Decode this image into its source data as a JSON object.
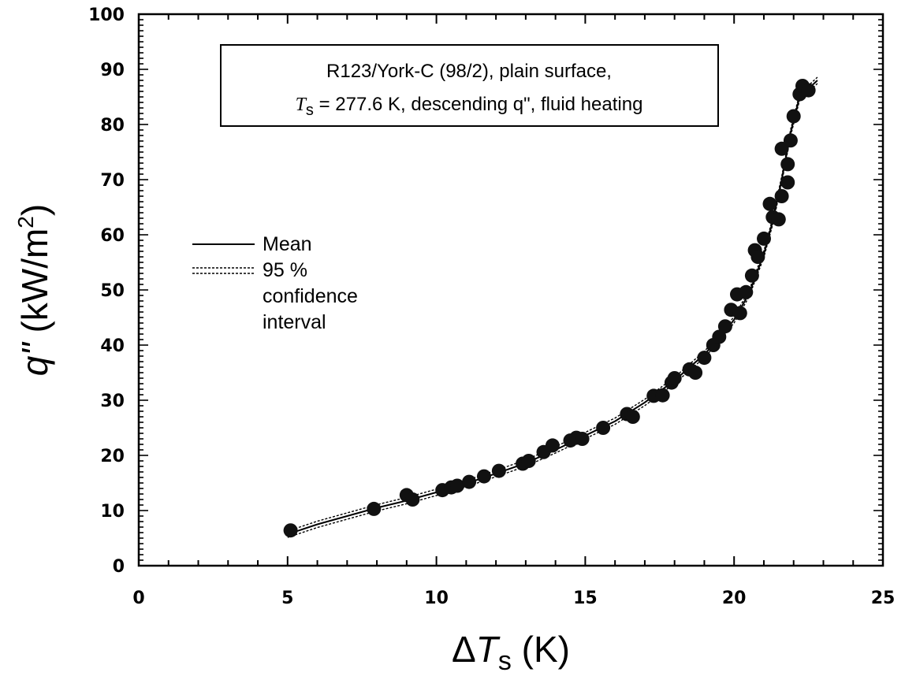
{
  "chart_data": {
    "type": "scatter",
    "title_line1": "R123/York-C (98/2), plain surface,",
    "title_line2_symbol": "T",
    "title_line2_subscript": "s",
    "title_line2_rest": " = 277.6 K, descending q\", fluid heating",
    "xlabel_prefix": "Δ",
    "xlabel_symbol": "T",
    "xlabel_subscript": "s",
    "xlabel_unit": " (K)",
    "ylabel_symbol": "q\"",
    "ylabel_unit": " (kW/m",
    "ylabel_unit_sup": "2",
    "ylabel_unit_end": ")",
    "xlim": [
      0,
      25
    ],
    "ylim": [
      0,
      100
    ],
    "xticks": [
      "0",
      "5",
      "10",
      "15",
      "20",
      "25"
    ],
    "yticks": [
      "0",
      "10",
      "20",
      "30",
      "40",
      "50",
      "60",
      "70",
      "80",
      "90",
      "100"
    ],
    "legend": {
      "mean_label": "Mean",
      "ci_label_1": "95 %",
      "ci_label_2": "confidence",
      "ci_label_3": "interval"
    },
    "series": [
      {
        "points": [
          [
            5.1,
            6.4
          ],
          [
            7.9,
            10.3
          ],
          [
            9.0,
            12.8
          ],
          [
            9.2,
            12.0
          ],
          [
            10.2,
            13.7
          ],
          [
            10.5,
            14.2
          ],
          [
            10.7,
            14.5
          ],
          [
            11.1,
            15.2
          ],
          [
            11.6,
            16.2
          ],
          [
            12.1,
            17.2
          ],
          [
            12.9,
            18.5
          ],
          [
            13.1,
            19.0
          ],
          [
            13.6,
            20.6
          ],
          [
            13.9,
            21.8
          ],
          [
            14.5,
            22.7
          ],
          [
            14.7,
            23.2
          ],
          [
            14.9,
            23.0
          ],
          [
            15.6,
            25.0
          ],
          [
            16.4,
            27.5
          ],
          [
            16.6,
            27.0
          ],
          [
            17.3,
            30.8
          ],
          [
            17.6,
            30.9
          ],
          [
            17.9,
            33.2
          ],
          [
            18.0,
            34.0
          ],
          [
            18.5,
            35.6
          ],
          [
            18.7,
            35.0
          ],
          [
            19.0,
            37.7
          ],
          [
            19.3,
            40.0
          ],
          [
            19.5,
            41.5
          ],
          [
            19.7,
            43.4
          ],
          [
            19.9,
            46.4
          ],
          [
            20.1,
            49.2
          ],
          [
            20.2,
            45.8
          ],
          [
            20.4,
            49.6
          ],
          [
            20.6,
            52.6
          ],
          [
            20.7,
            57.2
          ],
          [
            20.8,
            56.0
          ],
          [
            21.0,
            59.3
          ],
          [
            21.2,
            65.6
          ],
          [
            21.3,
            63.2
          ],
          [
            21.5,
            62.8
          ],
          [
            21.6,
            67.0
          ],
          [
            21.6,
            75.6
          ],
          [
            21.8,
            72.8
          ],
          [
            21.9,
            77.1
          ],
          [
            21.8,
            69.5
          ],
          [
            22.0,
            81.5
          ],
          [
            22.2,
            85.5
          ],
          [
            22.3,
            87.0
          ],
          [
            22.5,
            86.2
          ]
        ]
      }
    ],
    "mean_curve": [
      [
        5.0,
        5.7
      ],
      [
        6.0,
        7.5
      ],
      [
        7.0,
        9.0
      ],
      [
        8.0,
        10.5
      ],
      [
        9.0,
        11.8
      ],
      [
        10.0,
        13.3
      ],
      [
        11.0,
        14.9
      ],
      [
        12.0,
        16.7
      ],
      [
        13.0,
        18.6
      ],
      [
        14.0,
        21.0
      ],
      [
        15.0,
        23.6
      ],
      [
        16.0,
        26.2
      ],
      [
        17.0,
        29.6
      ],
      [
        18.0,
        33.6
      ],
      [
        19.0,
        38.3
      ],
      [
        19.5,
        41.2
      ],
      [
        20.0,
        44.6
      ],
      [
        20.5,
        49.3
      ],
      [
        21.0,
        56.5
      ],
      [
        21.3,
        62.5
      ],
      [
        21.6,
        70.0
      ],
      [
        21.9,
        78.5
      ],
      [
        22.2,
        85.0
      ],
      [
        22.8,
        88.0
      ]
    ]
  }
}
